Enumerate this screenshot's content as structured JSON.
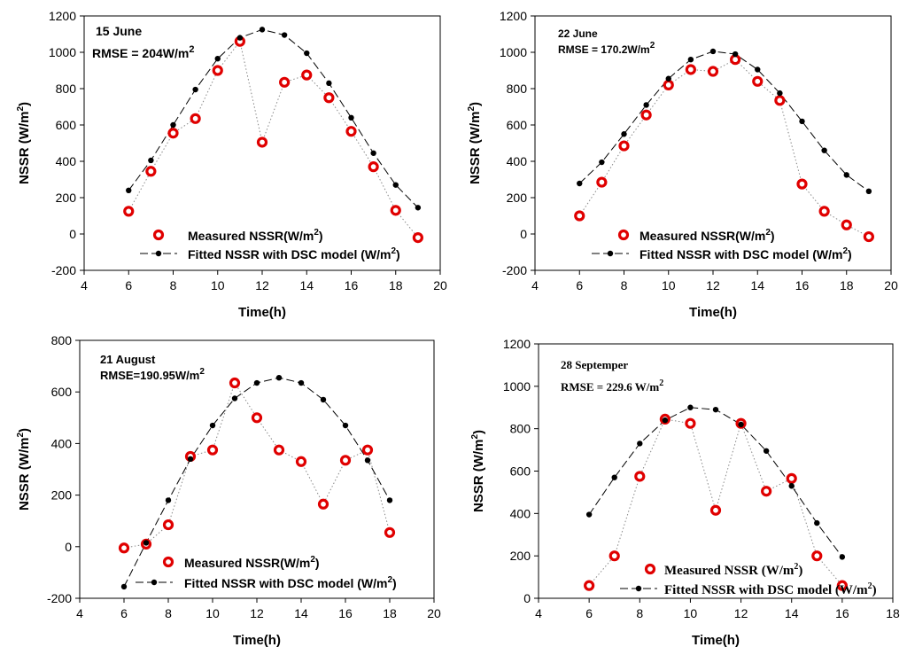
{
  "chart_data": [
    {
      "type": "line",
      "title": "15 June",
      "annotation": {
        "text": "RMSE = 204W/m",
        "sup": "2"
      },
      "xlabel": "Time(h)",
      "ylabel_main": "NSSR (W/m",
      "ylabel_sup": "2",
      "ylabel_end": ")",
      "xlim": [
        4,
        20
      ],
      "xticks": [
        4,
        6,
        8,
        10,
        12,
        14,
        16,
        18,
        20
      ],
      "ylim": [
        -200,
        1200
      ],
      "yticks": [
        -200,
        0,
        200,
        400,
        600,
        800,
        1000,
        1200
      ],
      "x": [
        6,
        7,
        8,
        9,
        10,
        11,
        12,
        13,
        14,
        15,
        16,
        17,
        18,
        19
      ],
      "series": [
        {
          "name": "Measured NSSR(W/m",
          "sup": "2",
          "end": ")",
          "style": "measured",
          "values": [
            125,
            345,
            555,
            635,
            900,
            1060,
            505,
            835,
            875,
            750,
            565,
            370,
            130,
            -20
          ]
        },
        {
          "name": "Fitted NSSR with DSC model (W/m",
          "sup": "2",
          "end": ")",
          "style": "fitted",
          "values": [
            240,
            405,
            600,
            795,
            965,
            1080,
            1125,
            1095,
            995,
            830,
            640,
            445,
            270,
            145
          ]
        }
      ]
    },
    {
      "type": "line",
      "title": "22 June",
      "annotation": {
        "text": "RMSE = 170.2W/m",
        "sup": "2"
      },
      "xlabel": "Time(h)",
      "ylabel_main": "NSSR (W/m",
      "ylabel_sup": "2",
      "ylabel_end": ")",
      "xlim": [
        4,
        20
      ],
      "xticks": [
        4,
        6,
        8,
        10,
        12,
        14,
        16,
        18,
        20
      ],
      "ylim": [
        -200,
        1200
      ],
      "yticks": [
        -200,
        0,
        200,
        400,
        600,
        800,
        1000,
        1200
      ],
      "x": [
        6,
        7,
        8,
        9,
        10,
        11,
        12,
        13,
        14,
        15,
        16,
        17,
        18,
        19
      ],
      "series": [
        {
          "name": "Measured NSSR(W/m",
          "sup": "2",
          "end": ")",
          "style": "measured",
          "values": [
            100,
            285,
            485,
            655,
            820,
            905,
            895,
            960,
            840,
            735,
            275,
            125,
            50,
            -15
          ]
        },
        {
          "name": "Fitted NSSR with DSC model (W/m",
          "sup": "2",
          "end": ")",
          "style": "fitted",
          "values": [
            278,
            395,
            550,
            710,
            855,
            960,
            1005,
            990,
            905,
            775,
            620,
            460,
            325,
            235
          ]
        }
      ]
    },
    {
      "type": "line",
      "title": "21 August",
      "annotation": {
        "text": "RMSE=190.95W/m",
        "sup": "2"
      },
      "xlabel": "Time(h)",
      "ylabel_main": "NSSR (W/m",
      "ylabel_sup": "2",
      "ylabel_end": ")",
      "xlim": [
        4,
        20
      ],
      "xticks": [
        4,
        6,
        8,
        10,
        12,
        14,
        16,
        18,
        20
      ],
      "ylim": [
        -200,
        800
      ],
      "yticks": [
        -200,
        0,
        200,
        400,
        600,
        800
      ],
      "x": [
        6,
        7,
        8,
        9,
        10,
        11,
        12,
        13,
        14,
        15,
        16,
        17,
        18
      ],
      "series": [
        {
          "name": "Measured NSSR(W/m",
          "sup": "2",
          "end": ")",
          "style": "measured",
          "values": [
            -5,
            10,
            85,
            350,
            375,
            635,
            500,
            375,
            330,
            165,
            335,
            375,
            55
          ]
        },
        {
          "name": "Fitted NSSR with DSC model (W/m",
          "sup": "2",
          "end": ")",
          "style": "fitted",
          "values": [
            -155,
            15,
            180,
            340,
            470,
            575,
            635,
            655,
            635,
            570,
            470,
            335,
            180
          ]
        }
      ]
    },
    {
      "type": "line",
      "title": "28 Septemper",
      "annotation": {
        "text": "RMSE = 229.6 W/m",
        "sup": "2"
      },
      "xlabel": "Time(h)",
      "ylabel_main": "NSSR (W/m",
      "ylabel_sup": "2",
      "ylabel_end": ")",
      "xlim": [
        4,
        18
      ],
      "xticks": [
        4,
        6,
        8,
        10,
        12,
        14,
        16,
        18
      ],
      "ylim": [
        0,
        1200
      ],
      "yticks": [
        0,
        200,
        400,
        600,
        800,
        1000,
        1200
      ],
      "x": [
        6,
        7,
        8,
        9,
        10,
        11,
        12,
        13,
        14,
        15,
        16
      ],
      "series": [
        {
          "name": "Measured NSSR (W/m",
          "sup": "2",
          "end": ")",
          "style": "measured",
          "values": [
            60,
            200,
            575,
            845,
            825,
            415,
            825,
            505,
            565,
            200,
            60
          ]
        },
        {
          "name": "Fitted NSSR with DSC model (W/m",
          "sup": "2",
          "end": ")",
          "style": "fitted",
          "values": [
            395,
            570,
            730,
            840,
            900,
            890,
            820,
            695,
            530,
            355,
            195
          ]
        }
      ]
    }
  ]
}
